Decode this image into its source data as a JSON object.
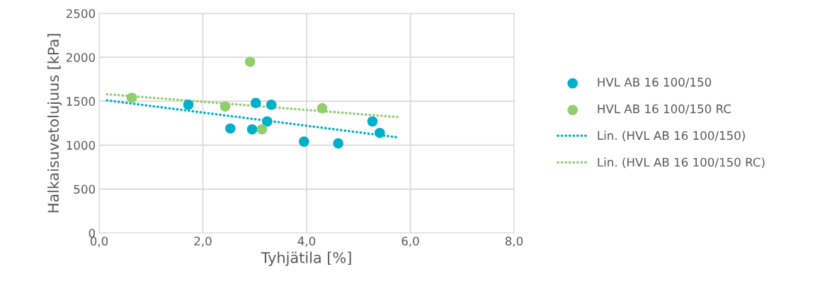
{
  "chart_data": {
    "type": "scatter",
    "xlabel": "Tyhjätila [%]",
    "ylabel": "Halkaisuvetolujuus [kPa]",
    "xlim": [
      0,
      8
    ],
    "ylim": [
      0,
      2500
    ],
    "xticks": [
      {
        "value": 0,
        "label": "0,0"
      },
      {
        "value": 2,
        "label": "2,0"
      },
      {
        "value": 4,
        "label": "4,0"
      },
      {
        "value": 6,
        "label": "6,0"
      },
      {
        "value": 8,
        "label": "8,0"
      }
    ],
    "yticks": [
      0,
      500,
      1000,
      1500,
      2000,
      2500
    ],
    "grid": true,
    "legend": "right",
    "marker": "circle",
    "series": [
      {
        "name": "HVL AB 16 100/150",
        "color": "#00b0c8",
        "x": [
          1.72,
          2.53,
          2.95,
          3.02,
          3.32,
          3.24,
          3.95,
          4.61,
          5.27,
          5.41
        ],
        "values": [
          1460,
          1190,
          1180,
          1480,
          1460,
          1270,
          1040,
          1020,
          1270,
          1140
        ]
      },
      {
        "name": "HVL AB 16 100/150 RC",
        "color": "#92cd6e",
        "x": [
          0.63,
          2.43,
          2.91,
          3.14,
          4.3
        ],
        "values": [
          1540,
          1440,
          1950,
          1180,
          1420
        ]
      },
      {
        "name": "Lin. (HVL AB 16 100/150)",
        "type": "line",
        "line_style": "dotted",
        "marker": "none",
        "color": "#00b0c8",
        "x": [
          0.15,
          5.75
        ],
        "values": [
          1510,
          1090
        ]
      },
      {
        "name": "Lin. (HVL AB 16 100/150 RC)",
        "type": "line",
        "line_style": "dotted",
        "marker": "none",
        "color": "#92cd6e",
        "x": [
          0.15,
          5.75
        ],
        "values": [
          1580,
          1320
        ]
      }
    ]
  }
}
